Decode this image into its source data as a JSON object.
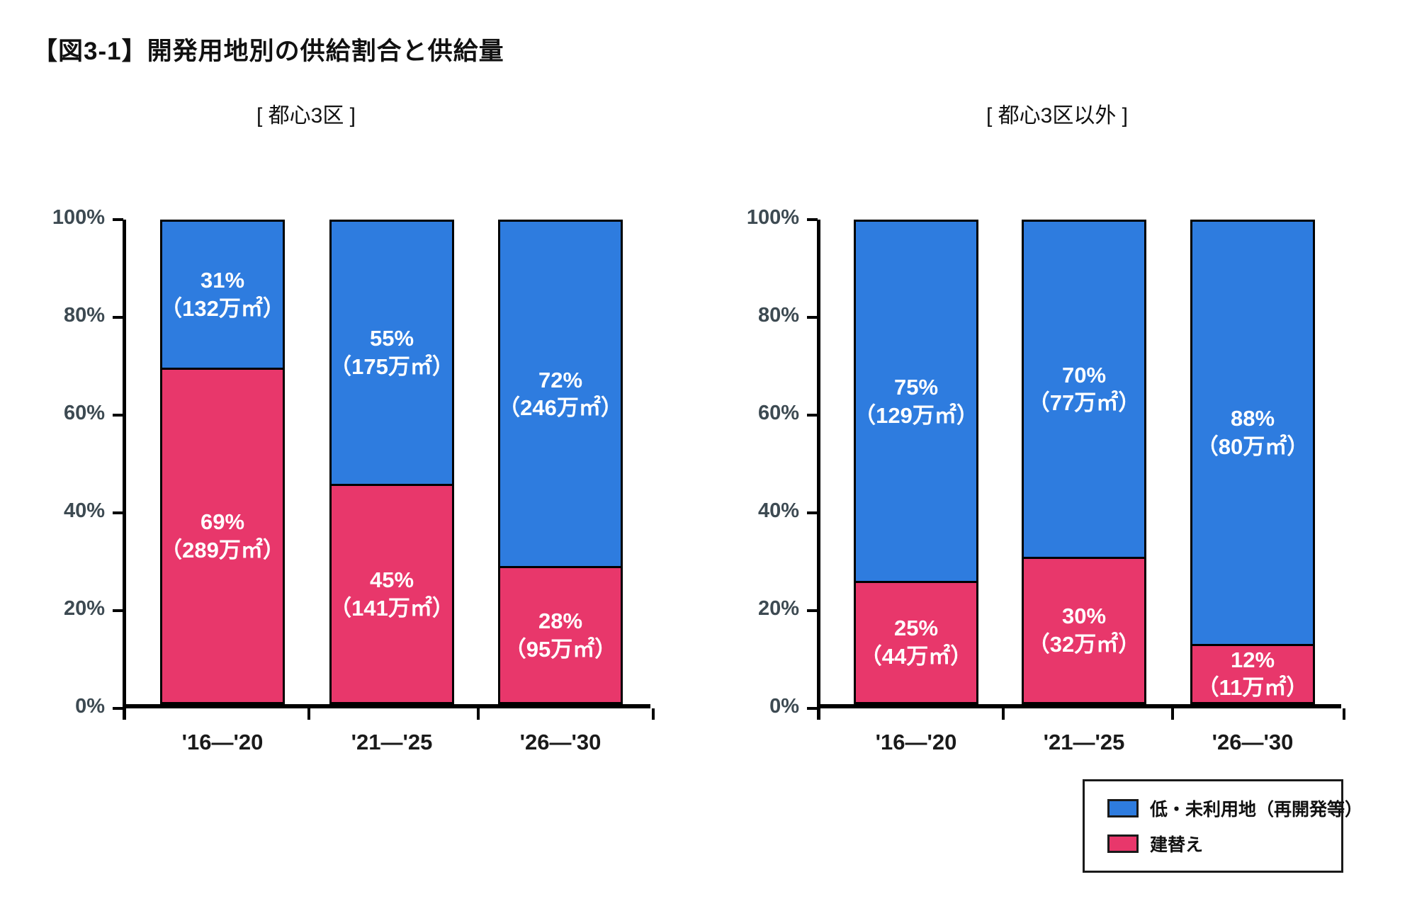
{
  "title": "【図3-1】開発用地別の供給割合と供給量",
  "colors": {
    "blue": "#2E7CDF",
    "red": "#E8376B",
    "axis_label": "#3D4A52",
    "axis_line": "#000000",
    "bar_label_text": "#FFFFFF"
  },
  "legend": {
    "items": [
      {
        "label": "低・未利用地（再開発等）",
        "color": "#2E7CDF"
      },
      {
        "label": "建替え",
        "color": "#E8376B"
      }
    ]
  },
  "chart_data": [
    {
      "type": "bar",
      "stacked": true,
      "subtitle": "[ 都心3区 ]",
      "categories": [
        "'16—'20",
        "'21—'25",
        "'26—'30"
      ],
      "ylabel": "",
      "ylim": [
        0,
        100
      ],
      "y_ticks": [
        "100%",
        "80%",
        "60%",
        "40%",
        "20%",
        "0%"
      ],
      "grid": false,
      "series": [
        {
          "name": "低・未利用地（再開発等）",
          "color": "#2E7CDF",
          "position": "top",
          "values": [
            31,
            55,
            72
          ],
          "data_labels": [
            {
              "pct": "31%",
              "amount": "（132万㎡）"
            },
            {
              "pct": "55%",
              "amount": "（175万㎡）"
            },
            {
              "pct": "72%",
              "amount": "（246万㎡）"
            }
          ]
        },
        {
          "name": "建替え",
          "color": "#E8376B",
          "position": "bottom",
          "values": [
            69,
            45,
            28
          ],
          "data_labels": [
            {
              "pct": "69%",
              "amount": "（289万㎡）"
            },
            {
              "pct": "45%",
              "amount": "（141万㎡）"
            },
            {
              "pct": "28%",
              "amount": "（95万㎡）"
            }
          ]
        }
      ]
    },
    {
      "type": "bar",
      "stacked": true,
      "subtitle": "[ 都心3区以外 ]",
      "categories": [
        "'16—'20",
        "'21—'25",
        "'26—'30"
      ],
      "ylabel": "",
      "ylim": [
        0,
        100
      ],
      "y_ticks": [
        "100%",
        "80%",
        "60%",
        "40%",
        "20%",
        "0%"
      ],
      "grid": false,
      "series": [
        {
          "name": "低・未利用地（再開発等）",
          "color": "#2E7CDF",
          "position": "top",
          "values": [
            75,
            70,
            88
          ],
          "data_labels": [
            {
              "pct": "75%",
              "amount": "（129万㎡）"
            },
            {
              "pct": "70%",
              "amount": "（77万㎡）"
            },
            {
              "pct": "88%",
              "amount": "（80万㎡）"
            }
          ]
        },
        {
          "name": "建替え",
          "color": "#E8376B",
          "position": "bottom",
          "values": [
            25,
            30,
            12
          ],
          "data_labels": [
            {
              "pct": "25%",
              "amount": "（44万㎡）"
            },
            {
              "pct": "30%",
              "amount": "（32万㎡）"
            },
            {
              "pct": "12%",
              "amount": "（11万㎡）"
            }
          ]
        }
      ]
    }
  ]
}
